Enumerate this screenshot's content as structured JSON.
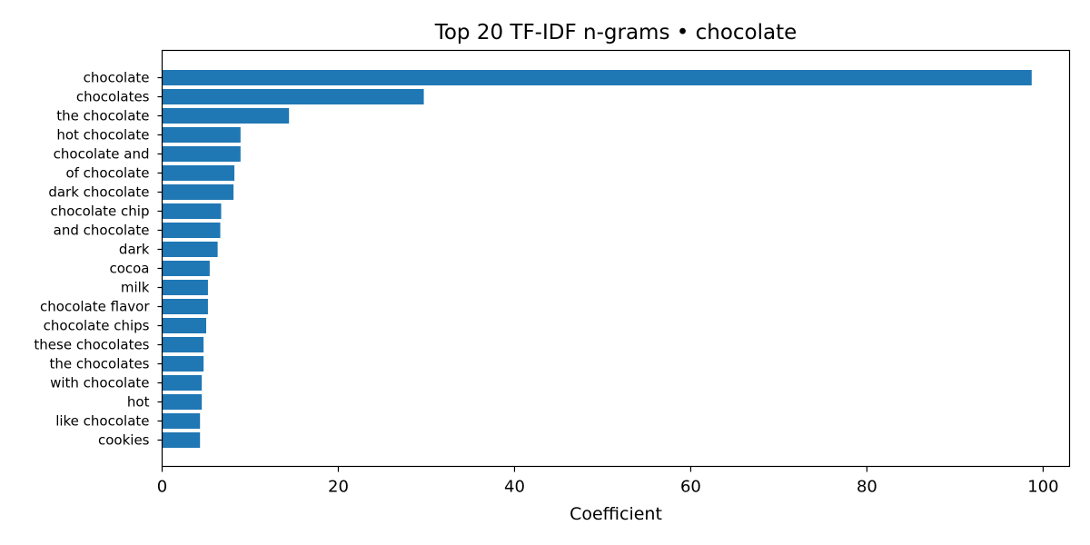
{
  "chart_data": {
    "type": "bar",
    "orientation": "horizontal",
    "title": "Top 20 TF-IDF n-grams • chocolate",
    "xlabel": "Coefficient",
    "ylabel": "",
    "xlim": [
      0,
      103
    ],
    "x_ticks": [
      0,
      20,
      40,
      60,
      80,
      100
    ],
    "grid": false,
    "legend": "none",
    "bar_color": "#1f77b4",
    "categories": [
      "chocolate",
      "chocolates",
      "the chocolate",
      "hot chocolate",
      "chocolate and",
      "of chocolate",
      "dark chocolate",
      "chocolate chip",
      "and chocolate",
      "dark",
      "cocoa",
      "milk",
      "chocolate flavor",
      "chocolate chips",
      "these chocolates",
      "the chocolates",
      "with chocolate",
      "hot",
      "like chocolate",
      "cookies"
    ],
    "values": [
      98.7,
      29.7,
      14.4,
      8.9,
      8.9,
      8.2,
      8.1,
      6.7,
      6.6,
      6.3,
      5.4,
      5.2,
      5.2,
      5.0,
      4.7,
      4.7,
      4.5,
      4.5,
      4.3,
      4.3
    ]
  }
}
